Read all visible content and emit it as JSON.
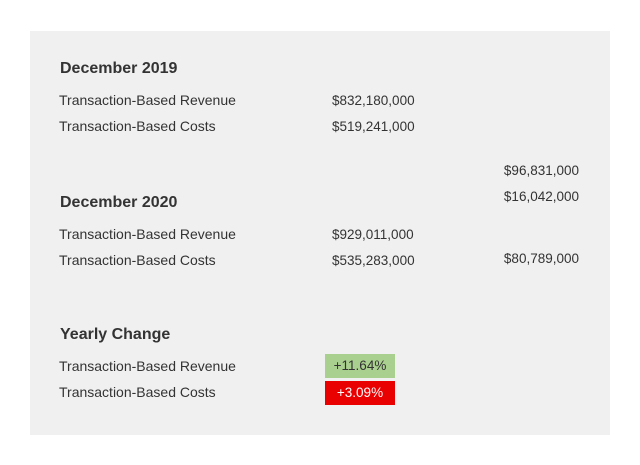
{
  "sections": [
    {
      "heading": "December 2019",
      "rows": [
        {
          "label": "Transaction-Based Revenue",
          "value": "$832,180,000"
        },
        {
          "label": "Transaction-Based Costs",
          "value": "$519,241,000"
        }
      ]
    },
    {
      "heading": "December 2020",
      "rows": [
        {
          "label": "Transaction-Based Revenue",
          "value": "$929,011,000"
        },
        {
          "label": "Transaction-Based Costs",
          "value": "$535,283,000"
        }
      ]
    }
  ],
  "side_values": [
    "$96,831,000",
    "$16,042,000",
    "$80,789,000"
  ],
  "yearly_change": {
    "heading": "Yearly Change",
    "rows": [
      {
        "label": "Transaction-Based Revenue",
        "value": "+11.64%",
        "color": "#a9d08e"
      },
      {
        "label": "Transaction-Based Costs",
        "value": "+3.09%",
        "color": "#e90000"
      }
    ]
  }
}
